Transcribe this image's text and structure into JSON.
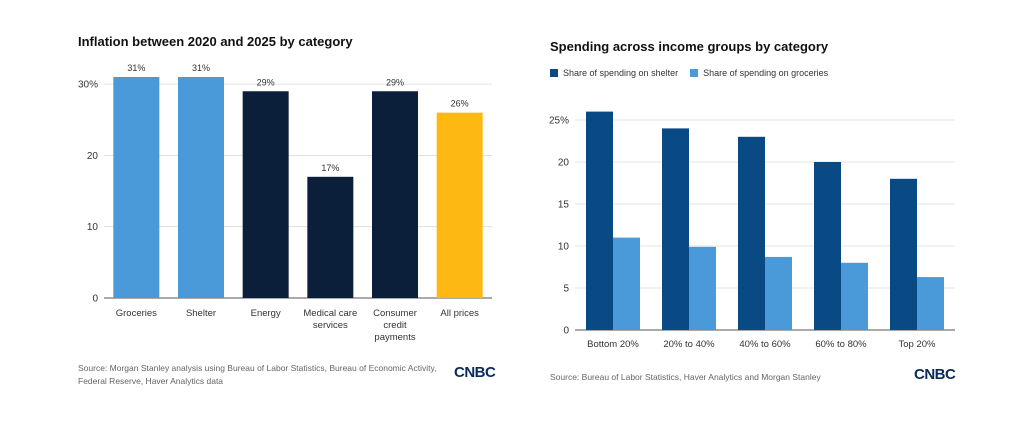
{
  "chart_data": [
    {
      "type": "bar",
      "title": "Inflation between 2020 and 2025 by category",
      "categories": [
        [
          "Groceries"
        ],
        [
          "Shelter"
        ],
        [
          "Energy"
        ],
        [
          "Medical care",
          "services"
        ],
        [
          "Consumer",
          "credit",
          "payments"
        ],
        [
          "All prices"
        ]
      ],
      "values": [
        31,
        31,
        29,
        17,
        29,
        26
      ],
      "data_labels": [
        "31%",
        "31%",
        "29%",
        "17%",
        "29%",
        "26%"
      ],
      "bar_colors": [
        "#4a9ad9",
        "#4a9ad9",
        "#0b1f3a",
        "#0b1f3a",
        "#0b1f3a",
        "#fdb813"
      ],
      "yticks": [
        0,
        10,
        20,
        30
      ],
      "ytick_labels": [
        "0",
        "10",
        "20",
        "30%"
      ],
      "ylim": [
        0,
        31
      ],
      "xlabel": "",
      "ylabel": "",
      "grid": true,
      "source": "Source: Morgan Stanley analysis using Bureau of Labor Statistics, Bureau of Economic Activity, Federal Reserve, Haver Analytics data",
      "logo": "CNBC"
    },
    {
      "type": "bar",
      "title": "Spending across income groups by category",
      "categories": [
        "Bottom 20%",
        "20% to 40%",
        "40% to 60%",
        "60% to 80%",
        "Top 20%"
      ],
      "series": [
        {
          "name": "Share of spending on shelter",
          "color": "#094a85",
          "values": [
            26,
            24,
            23,
            20,
            18
          ]
        },
        {
          "name": "Share of spending on groceries",
          "color": "#4a9ad9",
          "values": [
            11,
            9.9,
            8.7,
            8,
            6.3
          ]
        }
      ],
      "yticks": [
        0,
        5,
        10,
        15,
        20,
        25
      ],
      "ytick_labels": [
        "0",
        "5",
        "10",
        "15",
        "20",
        "25%"
      ],
      "ylim": [
        0,
        25
      ],
      "xlabel": "",
      "ylabel": "",
      "grid": true,
      "legend_position": "top-left",
      "source": "Source: Bureau of Labor Statistics, Haver Analytics and Morgan Stanley",
      "logo": "CNBC"
    }
  ]
}
